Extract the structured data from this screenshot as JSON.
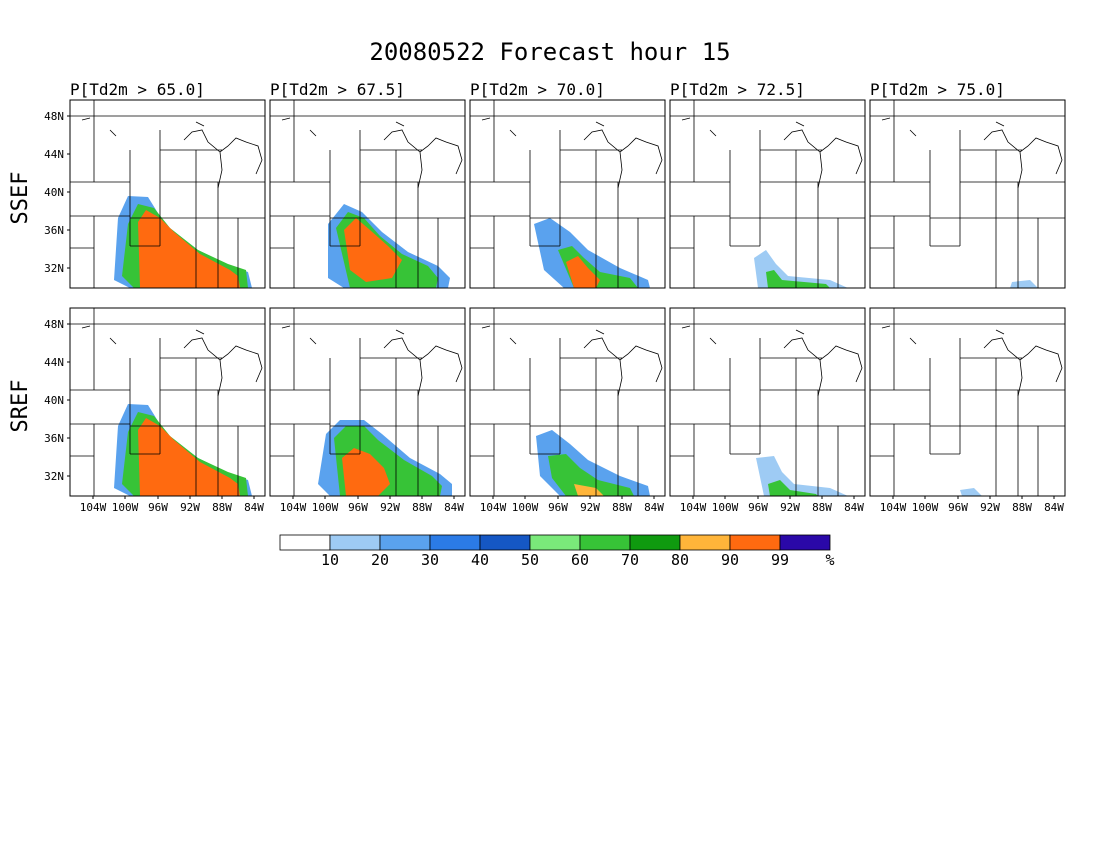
{
  "title": "20080522 Forecast hour 15",
  "row_labels": [
    "SSEF",
    "SREF"
  ],
  "panel_titles": [
    "P[Td2m > 65.0]",
    "P[Td2m > 67.5]",
    "P[Td2m > 70.0]",
    "P[Td2m > 72.5]",
    "P[Td2m > 75.0]"
  ],
  "lat_labels": [
    "48N",
    "44N",
    "40N",
    "36N",
    "32N"
  ],
  "lon_labels": [
    "104W",
    "100W",
    "96W",
    "92W",
    "88W",
    "84W"
  ],
  "colorbar": {
    "labels": [
      "10",
      "20",
      "30",
      "40",
      "50",
      "60",
      "70",
      "80",
      "90",
      "99",
      "%"
    ],
    "colors": [
      "#ffffff",
      "#9ecbf4",
      "#5aa2ee",
      "#2b7be6",
      "#1557c4",
      "#7ae97a",
      "#37c337",
      "#0f9a0f",
      "#ffb53a",
      "#ff6a10",
      "#2a08a8"
    ]
  }
}
